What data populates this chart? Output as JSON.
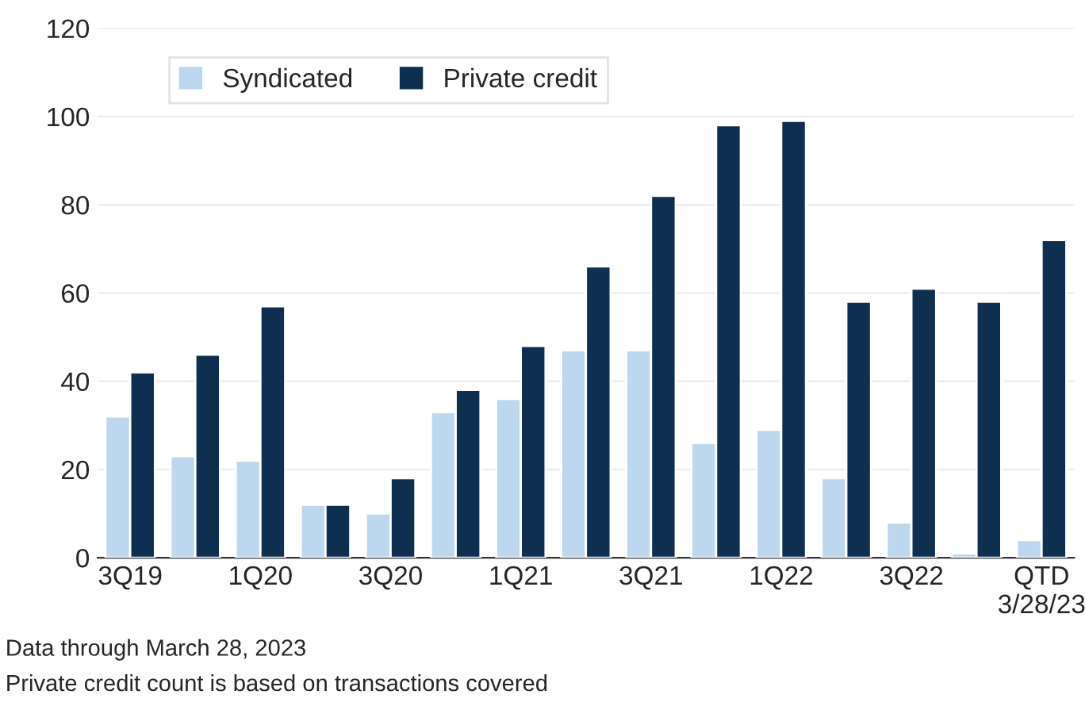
{
  "chart_data": {
    "type": "bar",
    "categories": [
      "3Q19",
      null,
      "1Q20",
      null,
      "3Q20",
      null,
      "1Q21",
      null,
      "3Q21",
      null,
      "1Q22",
      null,
      "3Q22",
      null,
      "QTD\n3/28/23"
    ],
    "series": [
      {
        "name": "Syndicated",
        "color": "#bdd7ee",
        "values": [
          32,
          23,
          22,
          12,
          10,
          33,
          36,
          47,
          47,
          26,
          29,
          18,
          8,
          1,
          4
        ]
      },
      {
        "name": "Private credit",
        "color": "#0e2f50",
        "values": [
          42,
          46,
          57,
          12,
          18,
          38,
          48,
          66,
          82,
          98,
          99,
          58,
          61,
          58,
          72
        ]
      }
    ],
    "ylim": [
      0,
      120
    ],
    "yticks": [
      0,
      20,
      40,
      60,
      80,
      100,
      120
    ],
    "grid": "y",
    "legend": "top left",
    "annotations": [
      "Data through March 28, 2023",
      "Private credit count is based on transactions covered"
    ]
  }
}
